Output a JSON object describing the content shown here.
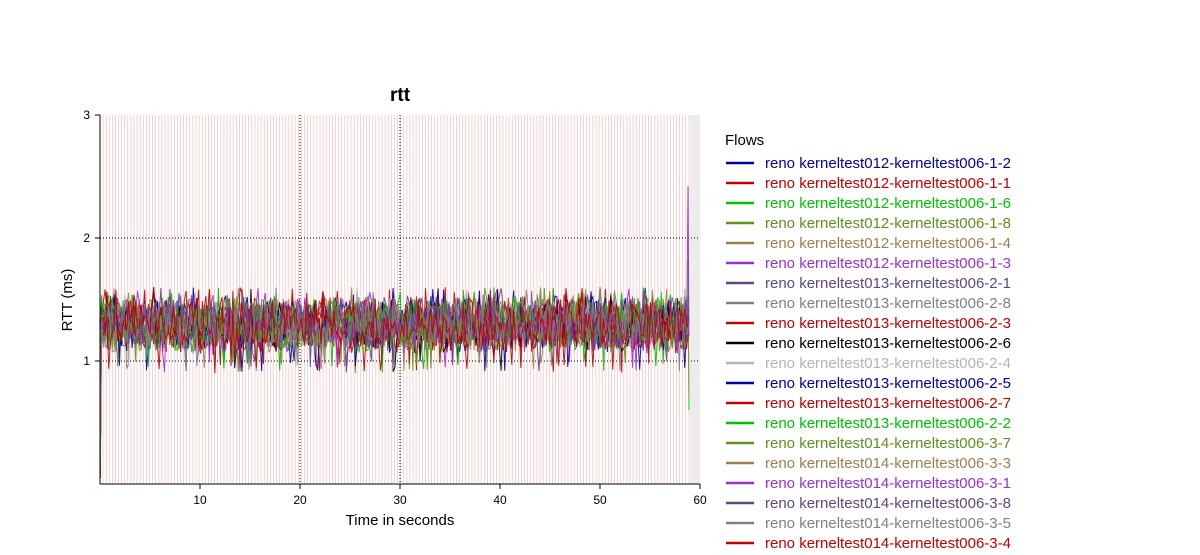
{
  "chart_data": {
    "type": "line",
    "title": "rtt",
    "xlabel": "Time in seconds",
    "ylabel": "RTT (ms)",
    "xlim": [
      0,
      60
    ],
    "ylim": [
      0,
      3
    ],
    "x_ticks": [
      10,
      20,
      30,
      40,
      50,
      60
    ],
    "y_ticks": [
      1,
      2,
      3
    ],
    "grid": "dotted at x=20,30 and y=1,2",
    "legend_title": "Flows",
    "legend_position": "right",
    "duration_s": 59,
    "baseline_rtt_ms": 1.3,
    "rtt_range_ms": [
      0.9,
      1.6
    ],
    "series": [
      {
        "name": "reno kerneltest012-kerneltest006-1-2",
        "color": "#0000a0"
      },
      {
        "name": "reno kerneltest012-kerneltest006-1-1",
        "color": "#c00000"
      },
      {
        "name": "reno kerneltest012-kerneltest006-1-6",
        "color": "#00c000"
      },
      {
        "name": "reno kerneltest012-kerneltest006-1-8",
        "color": "#5f8f1f"
      },
      {
        "name": "reno kerneltest012-kerneltest006-1-4",
        "color": "#9a8050"
      },
      {
        "name": "reno kerneltest012-kerneltest006-1-3",
        "color": "#9a30d0"
      },
      {
        "name": "reno kerneltest013-kerneltest006-2-1",
        "color": "#604878"
      },
      {
        "name": "reno kerneltest013-kerneltest006-2-8",
        "color": "#808080"
      },
      {
        "name": "reno kerneltest013-kerneltest006-2-3",
        "color": "#c00000"
      },
      {
        "name": "reno kerneltest013-kerneltest006-2-6",
        "color": "#000000"
      },
      {
        "name": "reno kerneltest013-kerneltest006-2-4",
        "color": "#b4b4b4"
      },
      {
        "name": "reno kerneltest013-kerneltest006-2-5",
        "color": "#0000a0"
      },
      {
        "name": "reno kerneltest013-kerneltest006-2-7",
        "color": "#c00000"
      },
      {
        "name": "reno kerneltest013-kerneltest006-2-2",
        "color": "#00c000"
      },
      {
        "name": "reno kerneltest014-kerneltest006-3-7",
        "color": "#5f8f1f"
      },
      {
        "name": "reno kerneltest014-kerneltest006-3-3",
        "color": "#9a8050"
      },
      {
        "name": "reno kerneltest014-kerneltest006-3-1",
        "color": "#9a30d0"
      },
      {
        "name": "reno kerneltest014-kerneltest006-3-8",
        "color": "#604878"
      },
      {
        "name": "reno kerneltest014-kerneltest006-3-5",
        "color": "#808080"
      },
      {
        "name": "reno kerneltest014-kerneltest006-3-4",
        "color": "#c00000"
      }
    ]
  }
}
